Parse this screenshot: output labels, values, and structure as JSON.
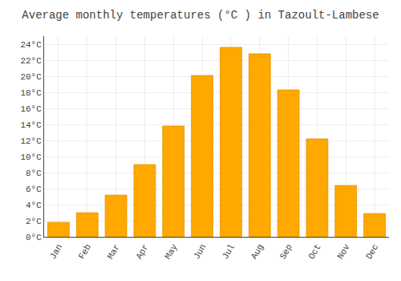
{
  "chart_data": {
    "type": "bar",
    "title": "Average monthly temperatures (°C ) in Tazoult-Lambese",
    "categories": [
      "Jan",
      "Feb",
      "Mar",
      "Apr",
      "May",
      "Jun",
      "Jul",
      "Aug",
      "Sep",
      "Oct",
      "Nov",
      "Dec"
    ],
    "values": [
      1.8,
      3.0,
      5.2,
      9.0,
      13.8,
      20.1,
      23.6,
      22.8,
      18.3,
      12.2,
      6.4,
      2.9
    ],
    "color": "#FFA800",
    "ylim": [
      0,
      25
    ],
    "yticks": [
      {
        "value": 0,
        "label": "0°C"
      },
      {
        "value": 2,
        "label": "2°C"
      },
      {
        "value": 4,
        "label": "4°C"
      },
      {
        "value": 6,
        "label": "6°C"
      },
      {
        "value": 8,
        "label": "8°C"
      },
      {
        "value": 10,
        "label": "10°C"
      },
      {
        "value": 12,
        "label": "12°C"
      },
      {
        "value": 14,
        "label": "14°C"
      },
      {
        "value": 16,
        "label": "16°C"
      },
      {
        "value": 18,
        "label": "18°C"
      },
      {
        "value": 20,
        "label": "20°C"
      },
      {
        "value": 22,
        "label": "22°C"
      },
      {
        "value": 24,
        "label": "24°C"
      }
    ],
    "grid": true
  }
}
